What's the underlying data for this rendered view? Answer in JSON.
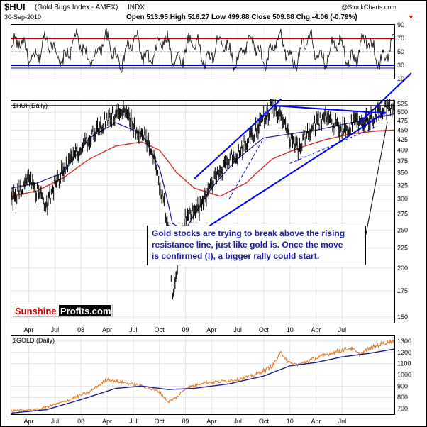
{
  "header": {
    "symbol": "$HUI",
    "name": "(Gold Bugs Index - AMEX)",
    "exchange": "INDX",
    "date": "30-Sep-2010",
    "copyright": "@StockCharts.com",
    "quote": "Open 513.95  High 516.27  Low 499.88  Close 509.88  Chg -4.06 (-0.79%)",
    "chg_arrow": "▼"
  },
  "colors": {
    "price": "#000000",
    "ma_short": "#1a1a8c",
    "ma_long": "#d42a2a",
    "trend": "#0000ff",
    "rsi_upper": "#cc0000",
    "rsi_lower": "#0000cc",
    "gold": "#e07a2a",
    "gold_ma": "#1a1a8c",
    "annotation": "#1a1aa8",
    "logo_red": "#d40000"
  },
  "annotation": {
    "lines": [
      "Gold stocks are trying to break above the rising",
      "resistance line, just like gold is. Once the move",
      "is confirmed (!), a bigger rally could start."
    ]
  },
  "logo": {
    "part1": "Sunshine",
    "part2": "Profits.com"
  },
  "chart_data": [
    {
      "type": "line",
      "panel": "rsi",
      "y_ticks": [
        "90",
        "70",
        "50",
        "30",
        "10"
      ],
      "ylim": [
        10,
        90
      ],
      "reference_lines": [
        70,
        50,
        30
      ],
      "grid": true
    },
    {
      "type": "line",
      "panel": "main",
      "title": "$HUI (Daily)",
      "y_scale": "log",
      "ylim": [
        145,
        535
      ],
      "y_ticks": [
        "525",
        "500",
        "475",
        "450",
        "425",
        "400",
        "375",
        "350",
        "325",
        "300",
        "275",
        "250",
        "225",
        "200",
        "175",
        "150"
      ],
      "x_labels": [
        "Apr",
        "Jul",
        "08",
        "Apr",
        "Jul",
        "Oct",
        "09",
        "Apr",
        "Jul",
        "Oct",
        "10",
        "Apr",
        "Jul"
      ],
      "x_label_months": [
        3,
        6,
        9,
        12,
        15,
        18,
        21,
        24,
        27,
        30,
        33,
        36,
        39
      ],
      "x_range_months": [
        1,
        45
      ],
      "price_anchors": [
        [
          1,
          300
        ],
        [
          3,
          335
        ],
        [
          5,
          290
        ],
        [
          7,
          360
        ],
        [
          9,
          400
        ],
        [
          10,
          430
        ],
        [
          12,
          480
        ],
        [
          14,
          515
        ],
        [
          15,
          460
        ],
        [
          16,
          440
        ],
        [
          17,
          410
        ],
        [
          18,
          330
        ],
        [
          19,
          260
        ],
        [
          19.5,
          170
        ],
        [
          20,
          200
        ],
        [
          21,
          270
        ],
        [
          23,
          290
        ],
        [
          24,
          330
        ],
        [
          25,
          350
        ],
        [
          26,
          380
        ],
        [
          27,
          390
        ],
        [
          29,
          450
        ],
        [
          31,
          520
        ],
        [
          32,
          480
        ],
        [
          33,
          430
        ],
        [
          34,
          400
        ],
        [
          35,
          440
        ],
        [
          37,
          490
        ],
        [
          38,
          470
        ],
        [
          39,
          450
        ],
        [
          40,
          465
        ],
        [
          42,
          480
        ],
        [
          44,
          508
        ],
        [
          45,
          512
        ]
      ],
      "ma_short_anchors": [
        [
          1,
          320
        ],
        [
          4,
          330
        ],
        [
          7,
          350
        ],
        [
          10,
          430
        ],
        [
          13,
          470
        ],
        [
          16,
          440
        ],
        [
          18,
          360
        ],
        [
          19.5,
          260
        ],
        [
          21,
          250
        ],
        [
          24,
          320
        ],
        [
          27,
          380
        ],
        [
          30,
          430
        ],
        [
          33,
          440
        ],
        [
          36,
          450
        ],
        [
          39,
          465
        ],
        [
          42,
          480
        ],
        [
          45,
          495
        ]
      ],
      "ma_long_anchors": [
        [
          1,
          305
        ],
        [
          4,
          315
        ],
        [
          7,
          340
        ],
        [
          10,
          380
        ],
        [
          13,
          410
        ],
        [
          16,
          420
        ],
        [
          18,
          400
        ],
        [
          20,
          350
        ],
        [
          22,
          320
        ],
        [
          25,
          305
        ],
        [
          28,
          330
        ],
        [
          31,
          380
        ],
        [
          34,
          405
        ],
        [
          37,
          425
        ],
        [
          40,
          440
        ],
        [
          43,
          448
        ],
        [
          45,
          450
        ]
      ],
      "trend_lines": [
        {
          "from": [
            22,
            338
          ],
          "to": [
            32,
            540
          ]
        },
        {
          "from": [
            23,
            250
          ],
          "to": [
            44,
            500
          ]
        },
        {
          "from": [
            31,
            520
          ],
          "to": [
            44,
            497
          ]
        }
      ],
      "horizontal_line": 520,
      "grid": true
    },
    {
      "type": "line",
      "panel": "gold",
      "title": "$GOLD (Daily)",
      "ylim": [
        650,
        1350
      ],
      "y_ticks": [
        "1300",
        "1200",
        "1100",
        "1000",
        "900",
        "800",
        "700"
      ],
      "x_labels": [
        "Apr",
        "Jul",
        "08",
        "Apr",
        "Jul",
        "Oct",
        "09",
        "Apr",
        "Jul",
        "Oct",
        "10",
        "Apr",
        "Jul"
      ],
      "gold_anchors": [
        [
          1,
          680
        ],
        [
          4,
          690
        ],
        [
          7,
          760
        ],
        [
          10,
          850
        ],
        [
          12,
          960
        ],
        [
          14,
          930
        ],
        [
          16,
          900
        ],
        [
          18,
          850
        ],
        [
          19,
          760
        ],
        [
          20,
          800
        ],
        [
          21,
          880
        ],
        [
          23,
          930
        ],
        [
          25,
          940
        ],
        [
          27,
          960
        ],
        [
          29,
          1000
        ],
        [
          31,
          1080
        ],
        [
          32,
          1200
        ],
        [
          33,
          1100
        ],
        [
          34,
          1090
        ],
        [
          36,
          1150
        ],
        [
          38,
          1200
        ],
        [
          40,
          1240
        ],
        [
          41,
          1180
        ],
        [
          42,
          1230
        ],
        [
          43,
          1260
        ],
        [
          45,
          1310
        ]
      ],
      "gold_ma_anchors": [
        [
          1,
          660
        ],
        [
          5,
          690
        ],
        [
          9,
          780
        ],
        [
          13,
          880
        ],
        [
          16,
          900
        ],
        [
          19,
          870
        ],
        [
          22,
          880
        ],
        [
          26,
          920
        ],
        [
          30,
          990
        ],
        [
          33,
          1080
        ],
        [
          36,
          1110
        ],
        [
          39,
          1160
        ],
        [
          42,
          1190
        ],
        [
          45,
          1230
        ]
      ],
      "grid": true
    }
  ]
}
